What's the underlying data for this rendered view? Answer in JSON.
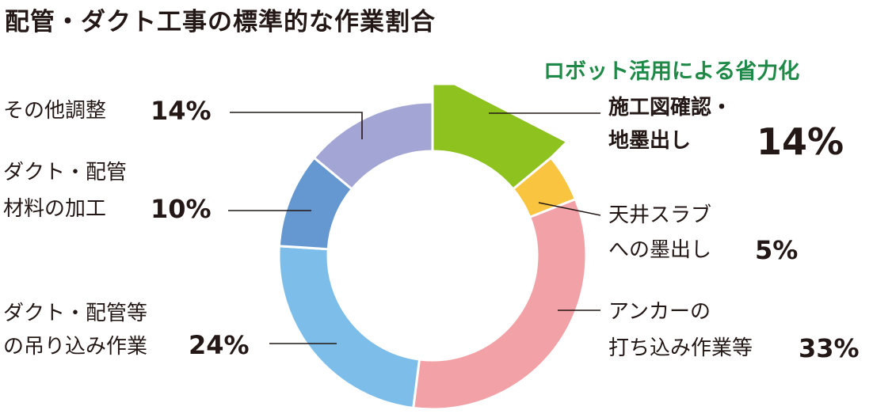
{
  "title": "配管・ダクト工事の標準的な作業割合",
  "note": "ロボット活用による省力化",
  "chart_data": {
    "type": "pie",
    "variant": "donut",
    "title": "配管・ダクト工事の標準的な作業割合",
    "slices": [
      {
        "label": "施工図確認・地墨出し",
        "label_lines": [
          "施工図確認・",
          "地墨出し"
        ],
        "value": 14,
        "pct_text": "14%",
        "color": "#8dc21f",
        "highlighted": true
      },
      {
        "label": "天井スラブへの墨出し",
        "label_lines": [
          "天井スラブ",
          "への墨出し"
        ],
        "value": 5,
        "pct_text": "5%",
        "color": "#f9c540"
      },
      {
        "label": "アンカーの打ち込み作業等",
        "label_lines": [
          "アンカーの",
          "打ち込み作業等"
        ],
        "value": 33,
        "pct_text": "33%",
        "color": "#f2a1a6"
      },
      {
        "label": "ダクト・配管等の吊り込み作業",
        "label_lines": [
          "ダクト・配管等",
          "の吊り込み作業"
        ],
        "value": 24,
        "pct_text": "24%",
        "color": "#7dbde9"
      },
      {
        "label": "ダクト・配管材料の加工",
        "label_lines": [
          "ダクト・配管",
          "材料の加工"
        ],
        "value": 10,
        "pct_text": "10%",
        "color": "#6598d0"
      },
      {
        "label": "その他調整",
        "label_lines": [
          "その他調整"
        ],
        "value": 14,
        "pct_text": "14%",
        "color": "#a3a6d4"
      }
    ]
  }
}
